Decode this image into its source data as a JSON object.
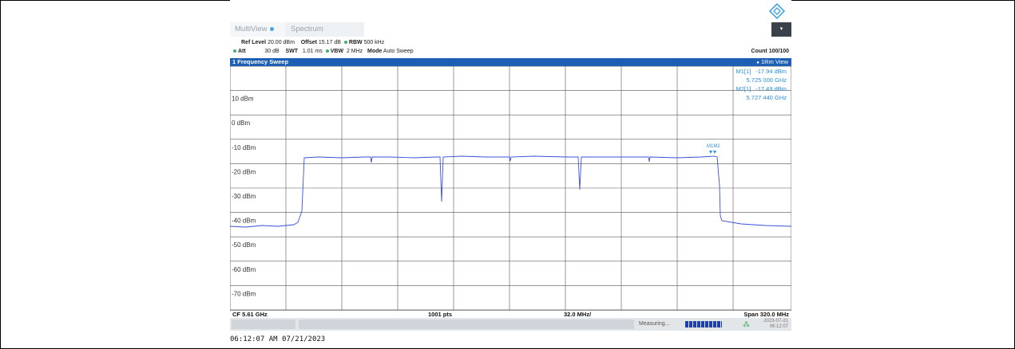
{
  "tabs": [
    {
      "label": "MultiView"
    },
    {
      "label": "Spectrum"
    }
  ],
  "params": {
    "row1": {
      "ref_level_label": "Ref Level",
      "ref_level": "20.00 dBm",
      "offset_label": "Offset",
      "offset": "15.17 dB",
      "rbw_label": "RBW",
      "rbw": "500 kHz"
    },
    "row2": {
      "att_label": "Att",
      "att": "30 dB",
      "swt_label": "SWT",
      "swt": "1.01 ms",
      "vbw_label": "VBW",
      "vbw": "2 MHz",
      "mode_label": "Mode",
      "mode": "Auto Sweep"
    },
    "count": "Count 100/100"
  },
  "window": {
    "title": "1 Frequency Sweep",
    "view": "1Rm View"
  },
  "markers": {
    "m1_label": "M1[1]",
    "m1_level": "-17.94 dBm",
    "m1_freq": "5.725 000 GHz",
    "m2_label": "M2[1]",
    "m2_level": "-17.49 dBm",
    "m2_freq": "5.727 440 GHz",
    "trace_tag": "M1M2"
  },
  "y_ticks": [
    "10 dBm",
    "0 dBm",
    "-10 dBm",
    "-20 dBm",
    "-30 dBm",
    "-40 dBm",
    "-50 dBm",
    "-60 dBm",
    "-70 dBm"
  ],
  "footer": {
    "cf": "CF 5.61 GHz",
    "pts": "1001 pts",
    "div": "32.0 MHz/",
    "span": "Span 320.0 MHz"
  },
  "status": {
    "measuring": "Measuring...",
    "date": "2023-07-21",
    "time": "06:12:07"
  },
  "timestamp": "06:12:07 AM  07/21/2023",
  "colors": {
    "trace": "#3b4fd8",
    "grid": "#555555",
    "marker": "#2a8fd6",
    "title_bar": "#1d5fb4"
  }
}
